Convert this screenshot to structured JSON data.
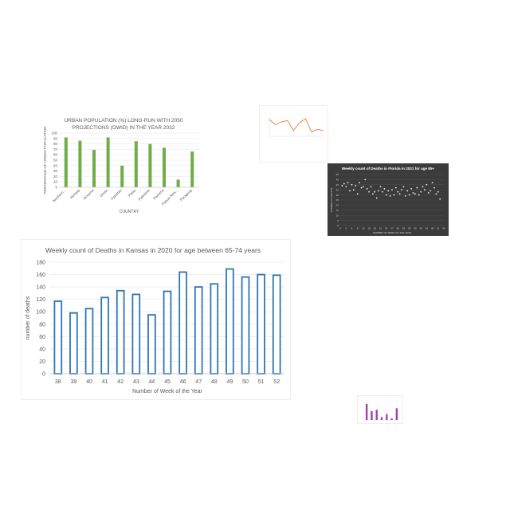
{
  "chart_data": [
    {
      "id": "urban",
      "type": "bar",
      "title_lines": [
        "URBAN POPULATION (%) LONG-RUN WITH 2050",
        "PROJECTIONS (OWID) IN THE YEAR 2032"
      ],
      "xlabel": "COUNTRY",
      "ylabel": "PERCENTAGE OF URBAN POPULATION",
      "categories": [
        "Northern...",
        "Norway",
        "Oceania",
        "Oman",
        "Pakistan",
        "Palau",
        "Palestine",
        "Panama",
        "Papua New...",
        "Paraguay"
      ],
      "values": [
        92,
        86,
        69,
        92,
        40,
        85,
        80,
        73,
        14,
        66
      ],
      "yticks": [
        "0",
        "10",
        "20",
        "30",
        "40",
        "50",
        "60",
        "70",
        "80",
        "90",
        "100"
      ],
      "ylim": [
        0,
        100
      ],
      "grid": true,
      "color": "#70ad47"
    },
    {
      "id": "orange",
      "type": "line",
      "values": [
        88,
        60,
        75,
        82,
        30,
        70,
        92,
        22,
        36,
        30
      ],
      "ylim": [
        0,
        100
      ],
      "color": "#ed7d31"
    },
    {
      "id": "florida",
      "type": "scatter",
      "title": "Weekly count of Deaths in Florida in 2021 for age 85+",
      "xlabel": "NUMBER OF WEEK OF THE YEAR",
      "ylabel": "NUMBER OF DEATHS",
      "x": [
        1,
        2,
        3,
        4,
        5,
        6,
        7,
        8,
        9,
        10,
        11,
        12,
        13,
        14,
        15,
        16,
        17,
        18,
        19,
        20,
        21,
        22,
        23,
        24,
        25,
        26,
        27,
        28,
        29,
        30,
        31,
        32,
        33,
        34,
        35,
        36,
        37,
        38,
        39,
        40,
        41,
        42,
        43,
        44,
        45,
        46,
        47,
        48,
        49,
        50,
        51,
        52
      ],
      "y": [
        39,
        41,
        38,
        42,
        34,
        40,
        35,
        39,
        31,
        42,
        37,
        38,
        45,
        36,
        33,
        38,
        31,
        33,
        27,
        34,
        38,
        33,
        36,
        30,
        34,
        29,
        35,
        30,
        37,
        33,
        31,
        35,
        38,
        29,
        34,
        30,
        36,
        32,
        31,
        37,
        30,
        33,
        38,
        35,
        40,
        32,
        34,
        42,
        37,
        31,
        33,
        26
      ],
      "xticks": [
        "0",
        "3",
        "6",
        "9",
        "12",
        "15",
        "18",
        "21",
        "24",
        "27",
        "30",
        "33",
        "36",
        "39",
        "42",
        "45",
        "48",
        "51",
        "54"
      ],
      "xlim": [
        0,
        54
      ],
      "yticks": [
        "0",
        "5",
        "10",
        "15",
        "20",
        "25",
        "30",
        "35",
        "40",
        "45",
        "50"
      ],
      "ylim": [
        0,
        50
      ],
      "grid": true,
      "color": "#f2f2f2"
    },
    {
      "id": "kansas",
      "type": "bar",
      "title": "Weekly count of Deaths in Kansas in 2020 for age between 65-74 years",
      "xlabel": "Number of Week of the Year",
      "ylabel": "number of deaths",
      "categories": [
        "38",
        "39",
        "40",
        "41",
        "42",
        "43",
        "44",
        "45",
        "46",
        "47",
        "48",
        "49",
        "50",
        "51",
        "52"
      ],
      "values": [
        117,
        98,
        105,
        123,
        134,
        128,
        95,
        133,
        164,
        140,
        145,
        169,
        156,
        160,
        159
      ],
      "yticks": [
        "0",
        "20",
        "40",
        "60",
        "80",
        "100",
        "120",
        "140",
        "160",
        "180"
      ],
      "ylim": [
        0,
        180
      ],
      "grid": true,
      "color": "#2e75b6"
    },
    {
      "id": "purple",
      "type": "bar",
      "values": [
        55,
        30,
        35,
        10,
        20,
        5,
        40
      ],
      "ylim": [
        0,
        60
      ],
      "color": "#a040b0"
    }
  ]
}
